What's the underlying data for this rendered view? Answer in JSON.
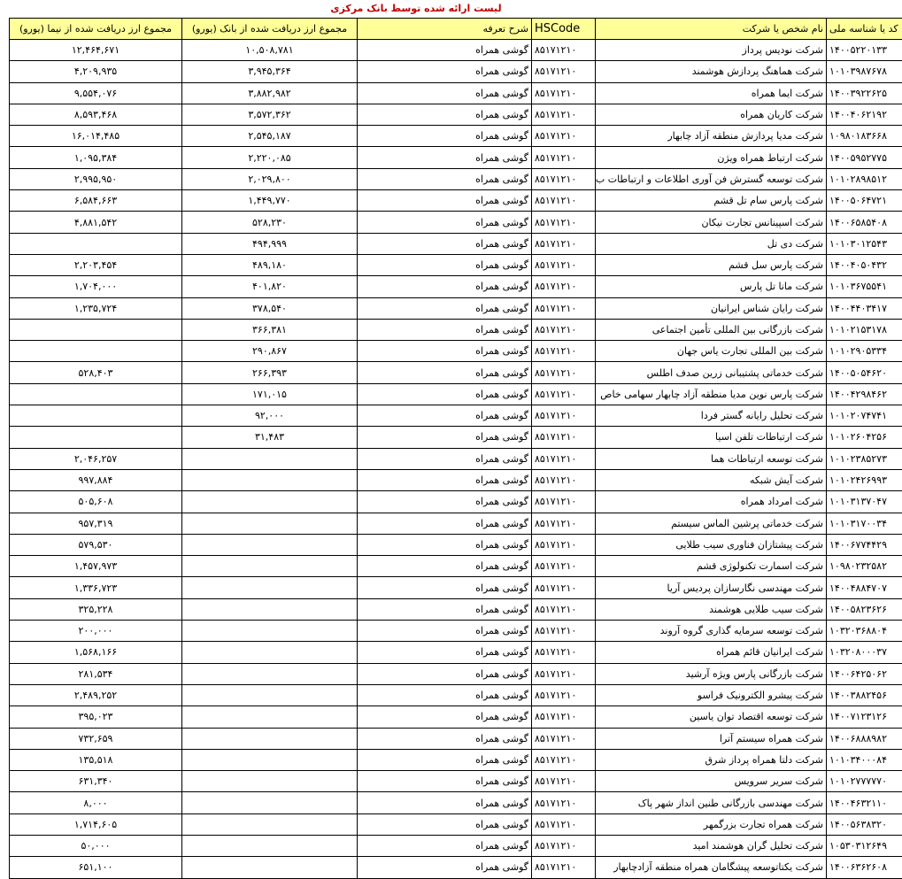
{
  "title": "لیست ارائه شده توسط بانک مرکزی",
  "table": {
    "header": [
      "کد یا شناسه ملی",
      "نام شخص یا شرکت",
      "HSCode",
      "شرح تعرفه",
      "مجموع ارز دریافت شده از بانک (یورو)",
      "مجموع ارز دریافت شده از نیما (یورو)"
    ],
    "rows": [
      [
        "۱۴۰۰۵۲۲۰۱۳۳",
        "شرکت نودیس پرداز",
        "۸۵۱۷۱۲۱۰",
        "گوشی همراه",
        "۱۰,۵۰۸,۷۸۱",
        "۱۲,۴۶۴,۶۷۱"
      ],
      [
        "۱۰۱۰۳۹۸۷۶۷۸",
        "شرکت هماهنگ پردازش هوشمند",
        "۸۵۱۷۱۲۱۰",
        "گوشی همراه",
        "۳,۹۴۵,۳۶۴",
        "۴,۲۰۹,۹۳۵"
      ],
      [
        "۱۴۰۰۳۹۲۲۶۲۵",
        "شرکت ایما همراه",
        "۸۵۱۷۱۲۱۰",
        "گوشی همراه",
        "۳,۸۸۲,۹۸۲",
        "۹,۵۵۴,۰۷۶"
      ],
      [
        "۱۴۰۰۴۰۶۲۱۹۲",
        "شرکت کاریان همراه",
        "۸۵۱۷۱۲۱۰",
        "گوشی همراه",
        "۳,۵۷۲,۳۶۲",
        "۸,۵۹۳,۴۶۸"
      ],
      [
        "۱۰۹۸۰۱۸۳۶۶۸",
        "شرکت مدیا پردازش منطقه آزاد چابهار",
        "۸۵۱۷۱۲۱۰",
        "گوشی همراه",
        "۲,۵۴۵,۱۸۷",
        "۱۶,۰۱۴,۴۸۵"
      ],
      [
        "۱۴۰۰۵۹۵۲۷۷۵",
        "شرکت ارتباط همراه ویژن",
        "۸۵۱۷۱۲۱۰",
        "گوشی همراه",
        "۲,۲۲۰,۰۸۵",
        "۱,۰۹۵,۳۸۴"
      ],
      [
        "۱۰۱۰۲۸۹۸۵۱۲",
        "شرکت توسعه گسترش فن آوری اطلاعات و ارتباطات ب",
        "۸۵۱۷۱۲۱۰",
        "گوشی همراه",
        "۲,۰۲۹,۸۰۰",
        "۲,۹۹۵,۹۵۰"
      ],
      [
        "۱۴۰۰۵۰۶۴۷۲۱",
        "شرکت پارس سام تل قشم",
        "۸۵۱۷۱۲۱۰",
        "گوشی همراه",
        "۱,۴۴۹,۷۷۰",
        "۶,۵۸۴,۶۶۳"
      ],
      [
        "۱۴۰۰۶۵۸۵۴۰۸",
        "شرکت اسپینانس تجارت نیکان",
        "۸۵۱۷۱۲۱۰",
        "گوشی همراه",
        "۵۲۸,۲۳۰",
        "۴,۸۸۱,۵۴۲"
      ],
      [
        "۱۰۱۰۳۰۱۲۵۴۳",
        "شرکت دی تل",
        "۸۵۱۷۱۲۱۰",
        "گوشی همراه",
        "۴۹۴,۹۹۹",
        null
      ],
      [
        "۱۴۰۰۴۰۵۰۴۳۲",
        "شرکت پارس سل قشم",
        "۸۵۱۷۱۲۱۰",
        "گوشی همراه",
        "۴۸۹,۱۸۰",
        "۲,۲۰۳,۴۵۴"
      ],
      [
        "۱۰۱۰۳۶۷۵۵۴۱",
        "شرکت مانا تل پارس",
        "۸۵۱۷۱۲۱۰",
        "گوشی همراه",
        "۴۰۱,۸۲۰",
        "۱,۷۰۴,۰۰۰"
      ],
      [
        "۱۴۰۰۴۴۰۳۴۱۷",
        "شرکت رایان شناس ایرانیان",
        "۸۵۱۷۱۲۱۰",
        "گوشی همراه",
        "۳۷۸,۵۴۰",
        "۱,۲۳۵,۷۲۴"
      ],
      [
        "۱۰۱۰۲۱۵۳۱۷۸",
        "شرکت بازرگانی بین المللی تأمین اجتماعی",
        "۸۵۱۷۱۲۱۰",
        "گوشی همراه",
        "۳۶۶,۳۸۱",
        null
      ],
      [
        "۱۰۱۰۲۹۰۵۳۳۴",
        "شرکت بین المللی تجارت یاس جهان",
        "۸۵۱۷۱۲۱۰",
        "گوشی همراه",
        "۲۹۰,۸۶۷",
        null
      ],
      [
        "۱۴۰۰۵۰۵۴۶۲۰",
        "شرکت خدماتی پشتیبانی زرین صدف اطلس",
        "۸۵۱۷۱۲۱۰",
        "گوشی همراه",
        "۲۶۶,۳۹۳",
        "۵۲۸,۴۰۳"
      ],
      [
        "۱۴۰۰۴۲۹۸۴۶۲",
        "شرکت پارس نوین مدیا منطقه آزاد چابهار سهامی خاص",
        "۸۵۱۷۱۲۱۰",
        "گوشی همراه",
        "۱۷۱,۰۱۵",
        null
      ],
      [
        "۱۰۱۰۲۰۷۴۷۴۱",
        "شرکت تحلیل رایانه گستر فردا",
        "۸۵۱۷۱۲۱۰",
        "گوشی همراه",
        "۹۲,۰۰۰",
        null
      ],
      [
        "۱۰۱۰۲۶۰۴۲۵۶",
        "شرکت ارتباطات تلفن اسیا",
        "۸۵۱۷۱۲۱۰",
        "گوشی همراه",
        "۳۱,۴۸۳",
        null
      ],
      [
        "۱۰۱۰۲۳۸۵۲۷۳",
        "شرکت توسعه ارتباطات هما",
        "۸۵۱۷۱۲۱۰",
        "گوشی همراه",
        null,
        "۲,۰۴۶,۲۵۷"
      ],
      [
        "۱۰۱۰۲۴۲۶۹۹۳",
        "شرکت آیش شبکه",
        "۸۵۱۷۱۲۱۰",
        "گوشی همراه",
        null,
        "۹۹۷,۸۸۴"
      ],
      [
        "۱۰۱۰۳۱۳۷۰۴۷",
        "شرکت امرداد همراه",
        "۸۵۱۷۱۲۱۰",
        "گوشی همراه",
        null,
        "۵۰۵,۶۰۸"
      ],
      [
        "۱۰۱۰۳۱۷۰۰۳۴",
        "شرکت خدماتی پرشین الماس سیستم",
        "۸۵۱۷۱۲۱۰",
        "گوشی همراه",
        null,
        "۹۵۷,۳۱۹"
      ],
      [
        "۱۴۰۰۶۷۷۴۴۲۹",
        "شرکت پیشتازان فناوری سیب طلایی",
        "۸۵۱۷۱۲۱۰",
        "گوشی همراه",
        null,
        "۵۷۹,۵۳۰"
      ],
      [
        "۱۰۹۸۰۲۳۲۵۸۲",
        "شرکت اسمارت تکنولوژی قشم",
        "۸۵۱۷۱۲۱۰",
        "گوشی همراه",
        null,
        "۱,۴۵۷,۹۷۳"
      ],
      [
        "۱۴۰۰۴۸۸۴۷۰۷",
        "شرکت مهندسی نگارسازان پردیس آریا",
        "۸۵۱۷۱۲۱۰",
        "گوشی همراه",
        null,
        "۱,۳۳۶,۷۲۳"
      ],
      [
        "۱۴۰۰۵۸۲۳۶۲۶",
        "شرکت سیب طلایی هوشمند",
        "۸۵۱۷۱۲۱۰",
        "گوشی همراه",
        null,
        "۳۲۵,۲۲۸"
      ],
      [
        "۱۰۳۲۰۳۶۸۸۰۴",
        "شرکت توسعه سرمایه گذاری گروه آروند",
        "۸۵۱۷۱۲۱۰",
        "گوشی همراه",
        null,
        "۲۰۰,۰۰۰"
      ],
      [
        "۱۰۳۲۰۸۰۰۰۳۷",
        "شرکت ایرانیان قائم همراه",
        "۸۵۱۷۱۲۱۰",
        "گوشی همراه",
        null,
        "۱,۵۶۸,۱۶۶"
      ],
      [
        "۱۴۰۰۶۴۲۵۰۶۲",
        "شرکت بازرگانی پارس ویژه آرشید",
        "۸۵۱۷۱۲۱۰",
        "گوشی همراه",
        null,
        "۲۸۱,۵۳۴"
      ],
      [
        "۱۴۰۰۳۸۸۲۴۵۶",
        "شرکت پیشرو الکترونیک فراسو",
        "۸۵۱۷۱۲۱۰",
        "گوشی همراه",
        null,
        "۲,۴۸۹,۲۵۲"
      ],
      [
        "۱۴۰۰۷۱۲۳۱۲۶",
        "شرکت توسعه اقتصاد توان یاسین",
        "۸۵۱۷۱۲۱۰",
        "گوشی همراه",
        null,
        "۳۹۵,۰۲۳"
      ],
      [
        "۱۴۰۰۶۸۸۸۹۸۲",
        "شرکت همراه سیستم آترا",
        "۸۵۱۷۱۲۱۰",
        "گوشی همراه",
        null,
        "۷۳۲,۶۵۹"
      ],
      [
        "۱۰۱۰۳۴۰۰۰۸۴",
        "شرکت دلتا همراه پرداز شرق",
        "۸۵۱۷۱۲۱۰",
        "گوشی همراه",
        null,
        "۱۳۵,۵۱۸"
      ],
      [
        "۱۰۱۰۲۷۷۷۷۷۰",
        "شرکت سریر سرویس",
        "۸۵۱۷۱۲۱۰",
        "گوشی همراه",
        null,
        "۶۳۱,۳۴۰"
      ],
      [
        "۱۴۰۰۴۶۳۲۱۱۰",
        "شرکت مهندسی بازرگانی طنین انداز شهر پاک",
        "۸۵۱۷۱۲۱۰",
        "گوشی همراه",
        null,
        "۸,۰۰۰"
      ],
      [
        "۱۴۰۰۵۶۳۸۳۲۰",
        "شرکت همراه تجارت بزرگمهر",
        "۸۵۱۷۱۲۱۰",
        "گوشی همراه",
        null,
        "۱,۷۱۴,۶۰۵"
      ],
      [
        "۱۰۵۳۰۳۱۲۶۴۹",
        "شرکت تحلیل گران هوشمند امید",
        "۸۵۱۷۱۲۱۰",
        "گوشی همراه",
        null,
        "۵۰,۰۰۰"
      ],
      [
        "۱۴۰۰۶۳۶۲۶۰۸",
        "شرکت یکتاتوسعه پیشگامان همراه منطقه آزادچابهار",
        "۸۵۱۷۱۲۱۰",
        "گوشی همراه",
        null,
        "۶۵۱,۱۰۰"
      ]
    ]
  }
}
